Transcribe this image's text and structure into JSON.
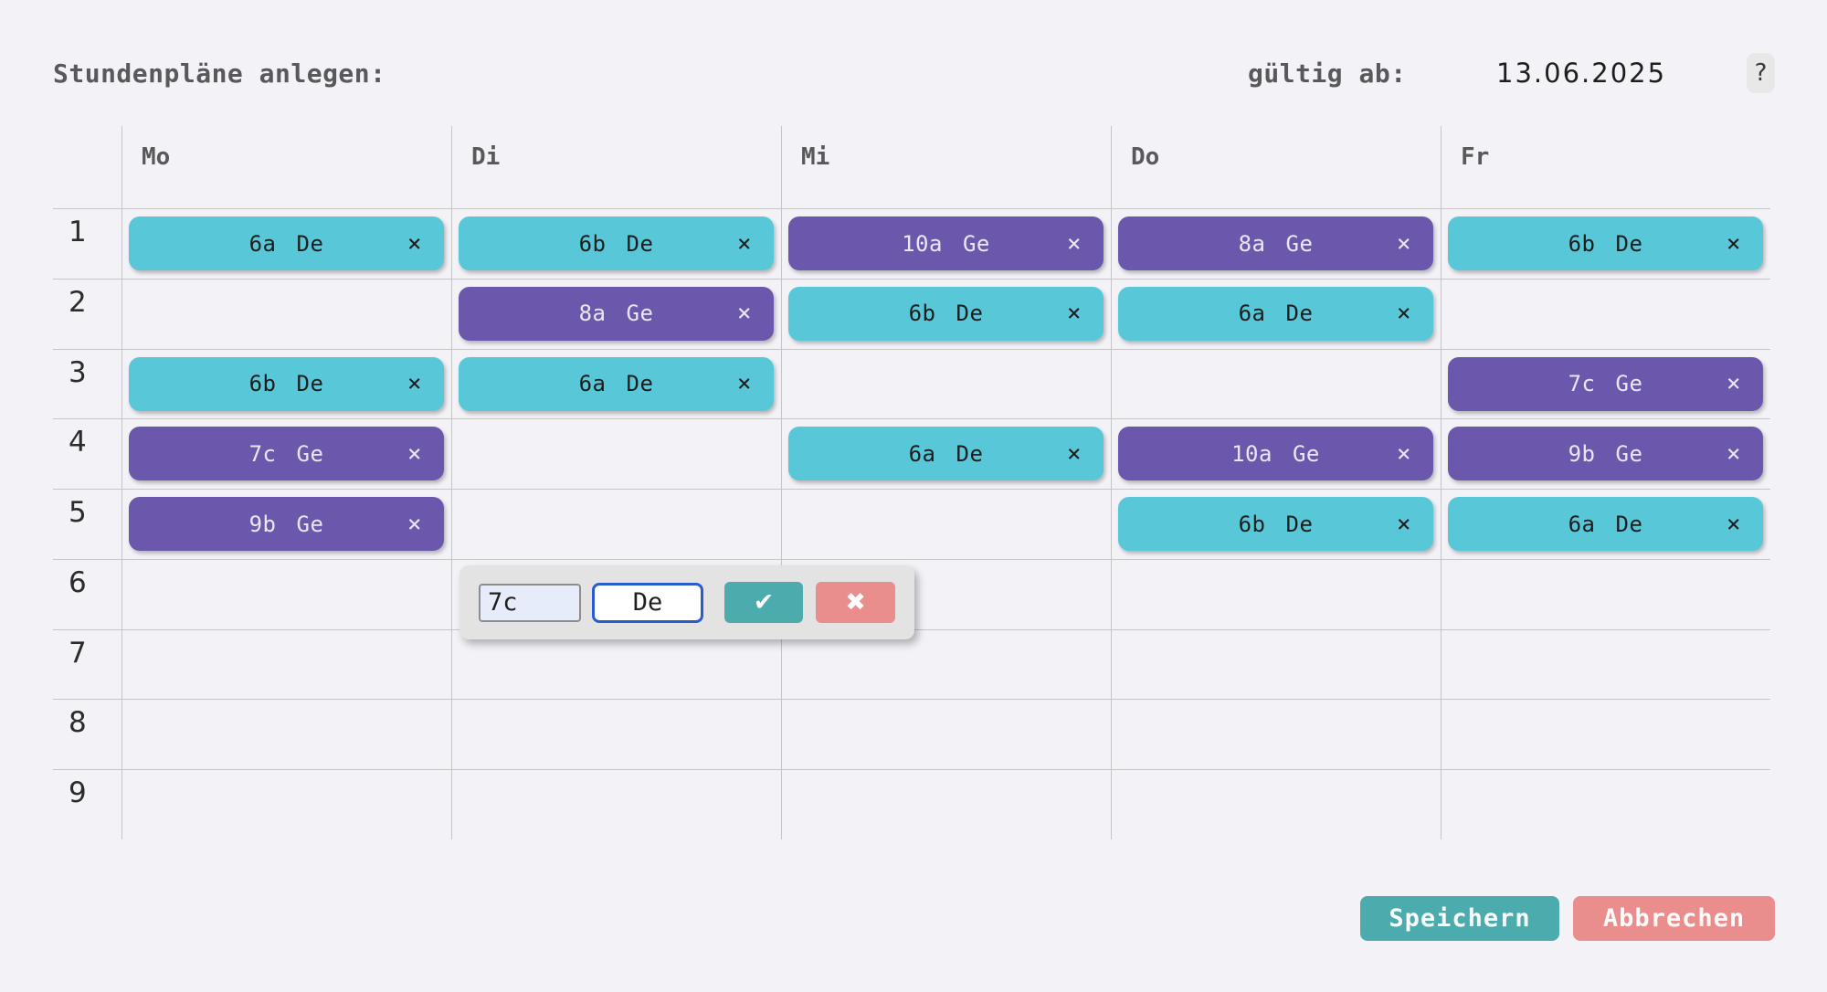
{
  "header": {
    "title": "Stundenpläne anlegen:",
    "valid_from_label": "gültig ab:",
    "valid_from_date": "13.06.2025",
    "help_button": "?"
  },
  "timetable": {
    "day_headers": [
      "Mo",
      "Di",
      "Mi",
      "Do",
      "Fr"
    ],
    "remove_label": "×",
    "rows": [
      {
        "period": "1",
        "cells": [
          {
            "class": "6a",
            "subject": "De",
            "variant": "teal"
          },
          {
            "class": "6b",
            "subject": "De",
            "variant": "teal"
          },
          {
            "class": "10a",
            "subject": "Ge",
            "variant": "purple"
          },
          {
            "class": "8a",
            "subject": "Ge",
            "variant": "purple"
          },
          {
            "class": "6b",
            "subject": "De",
            "variant": "teal"
          }
        ]
      },
      {
        "period": "2",
        "cells": [
          null,
          {
            "class": "8a",
            "subject": "Ge",
            "variant": "purple"
          },
          {
            "class": "6b",
            "subject": "De",
            "variant": "teal"
          },
          {
            "class": "6a",
            "subject": "De",
            "variant": "teal"
          },
          null
        ]
      },
      {
        "period": "3",
        "cells": [
          {
            "class": "6b",
            "subject": "De",
            "variant": "teal"
          },
          {
            "class": "6a",
            "subject": "De",
            "variant": "teal"
          },
          null,
          null,
          {
            "class": "7c",
            "subject": "Ge",
            "variant": "purple"
          }
        ]
      },
      {
        "period": "4",
        "cells": [
          {
            "class": "7c",
            "subject": "Ge",
            "variant": "purple"
          },
          null,
          {
            "class": "6a",
            "subject": "De",
            "variant": "teal"
          },
          {
            "class": "10a",
            "subject": "Ge",
            "variant": "purple"
          },
          {
            "class": "9b",
            "subject": "Ge",
            "variant": "purple"
          }
        ]
      },
      {
        "period": "5",
        "cells": [
          {
            "class": "9b",
            "subject": "Ge",
            "variant": "purple"
          },
          null,
          null,
          {
            "class": "6b",
            "subject": "De",
            "variant": "teal"
          },
          {
            "class": "6a",
            "subject": "De",
            "variant": "teal"
          }
        ]
      },
      {
        "period": "6",
        "cells": [
          null,
          null,
          null,
          null,
          null
        ]
      },
      {
        "period": "7",
        "cells": [
          null,
          null,
          null,
          null,
          null
        ]
      },
      {
        "period": "8",
        "cells": [
          null,
          null,
          null,
          null,
          null
        ]
      },
      {
        "period": "9",
        "cells": [
          null,
          null,
          null,
          null,
          null
        ]
      }
    ]
  },
  "editor": {
    "class_value": "7c",
    "subject_value": "De",
    "confirm_icon": "✔",
    "cancel_icon": "✖"
  },
  "actions": {
    "save_label": "Speichern",
    "cancel_label": "Abbrechen"
  },
  "colors": {
    "background": "#f2f2f7",
    "lesson_teal": "#58c8d9",
    "lesson_purple": "#6b57ac",
    "confirm_teal": "#4cabad",
    "cancel_red": "#e98d8d",
    "grid_line": "#c6c6c6",
    "focus_blue": "#2b5bce"
  }
}
